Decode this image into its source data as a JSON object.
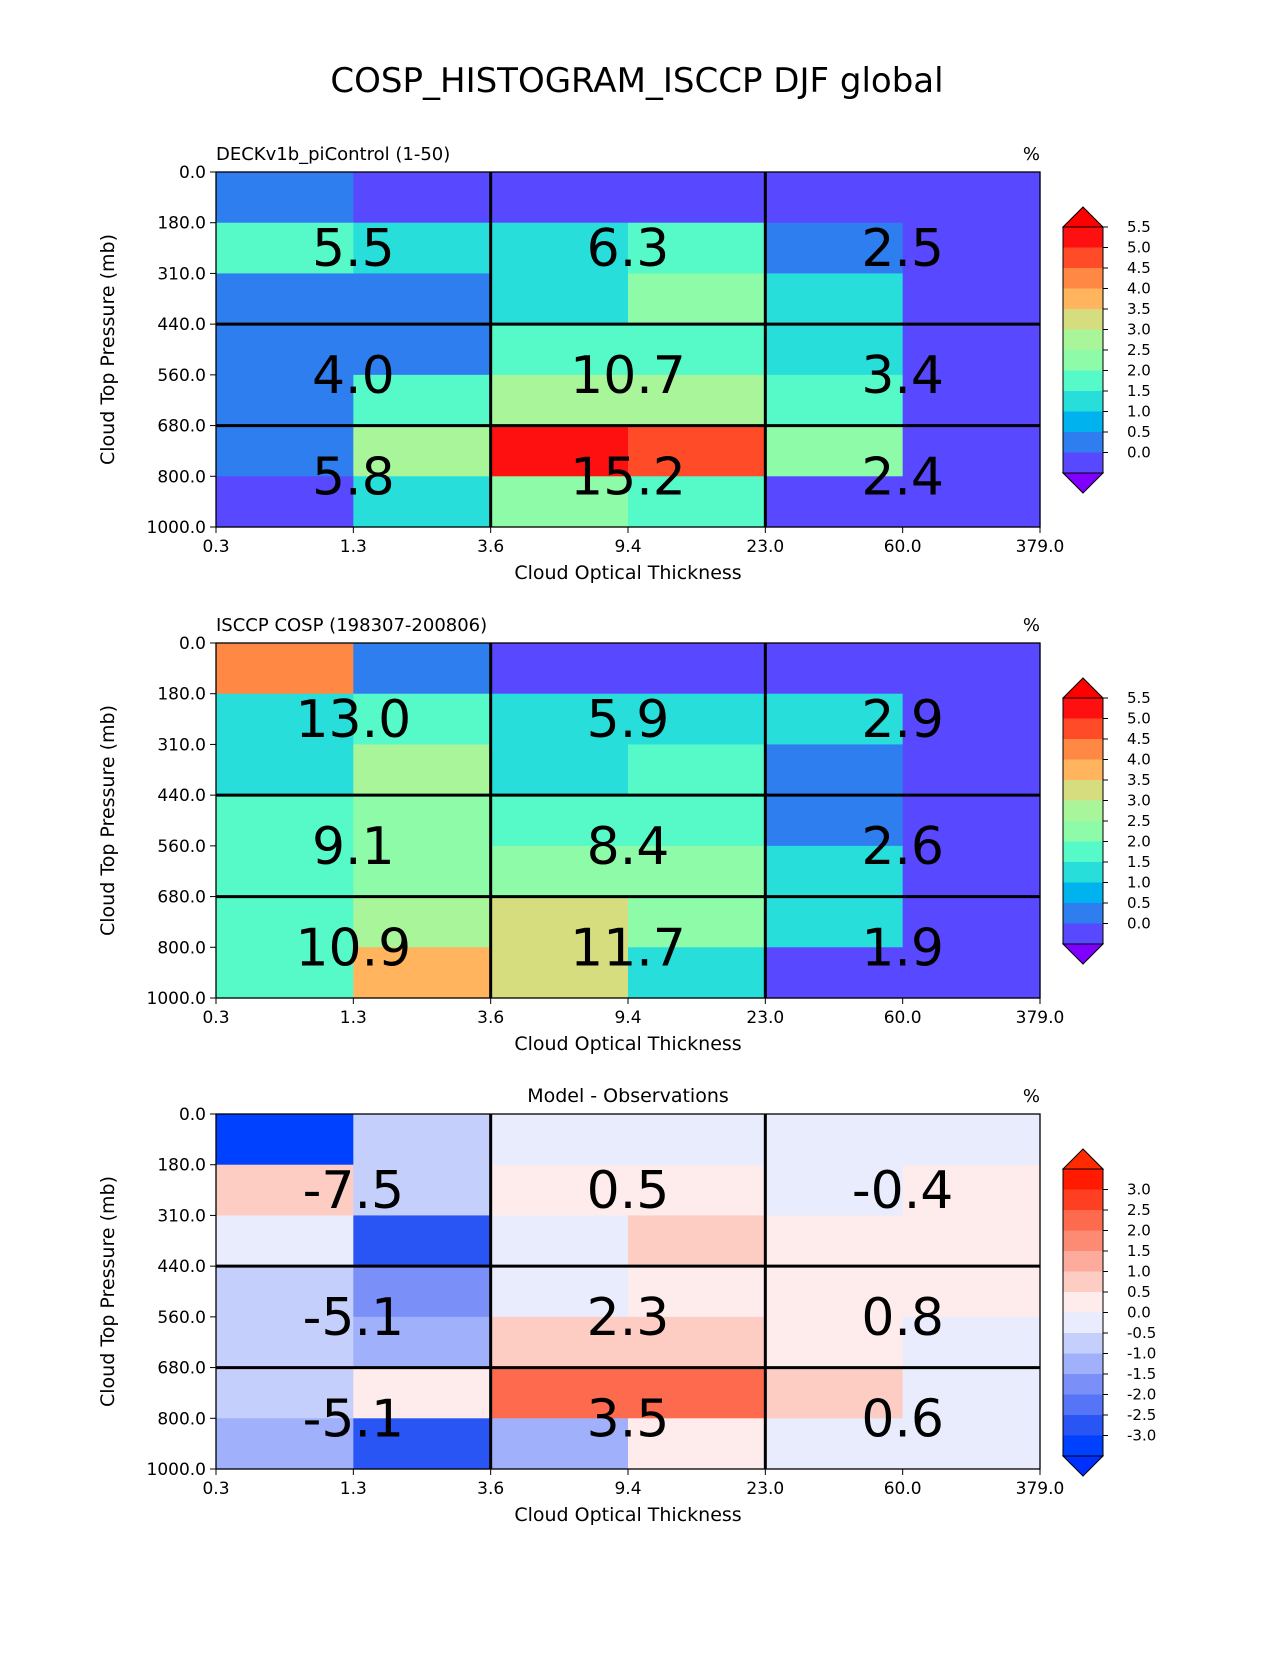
{
  "page_title": "COSP_HISTOGRAM_ISCCP DJF global",
  "chart_data": [
    {
      "type": "heatmap",
      "title": "DECKv1b_piControl (1-50)",
      "units": "%",
      "xlabel": "Cloud Optical Thickness",
      "ylabel": "Cloud Top Pressure (mb)",
      "x_bin_edges": [
        "0.3",
        "1.3",
        "3.6",
        "9.4",
        "23.0",
        "60.0",
        "379.0"
      ],
      "y_bin_edges": [
        "0.0",
        "180.0",
        "310.0",
        "440.0",
        "560.0",
        "680.0",
        "800.0",
        "1000.0"
      ],
      "colorbar": {
        "ticks": [
          "5.5",
          "5.0",
          "4.5",
          "4.0",
          "3.5",
          "3.0",
          "2.5",
          "2.0",
          "1.5",
          "1.0",
          "0.5",
          "0.0"
        ],
        "levels": [
          0,
          0.5,
          1.0,
          1.5,
          2.0,
          2.5,
          3.0,
          3.5,
          4.0,
          4.5,
          5.0,
          5.5
        ],
        "colors": [
          "#5848ff",
          "#2e7ef0",
          "#00b2ee",
          "#27dedb",
          "#55fac8",
          "#8dfba7",
          "#a9f59a",
          "#d5dd7e",
          "#ffb45d",
          "#ff8844",
          "#ff4b28",
          "#ff1010"
        ],
        "under_color": "#8000ff",
        "over_color": "#ff0000"
      },
      "cells": [
        [
          0.5,
          0.2,
          0.2,
          0.2,
          0.2,
          0.2
        ],
        [
          2.0,
          1.5,
          1.5,
          2.0,
          0.5,
          0.2
        ],
        [
          0.5,
          0.5,
          1.5,
          2.5,
          1.5,
          0.2
        ],
        [
          0.5,
          0.5,
          2.0,
          2.0,
          1.5,
          0.2
        ],
        [
          0.5,
          2.0,
          3.0,
          3.0,
          2.0,
          0.2
        ],
        [
          0.5,
          3.0,
          5.8,
          5.0,
          2.5,
          0.2
        ],
        [
          0.2,
          1.5,
          2.5,
          2.0,
          0.2,
          0.2
        ]
      ],
      "group_labels": [
        [
          "5.5",
          "6.3",
          "2.5"
        ],
        [
          "4.0",
          "10.7",
          "3.4"
        ],
        [
          "5.8",
          "15.2",
          "2.4"
        ]
      ]
    },
    {
      "type": "heatmap",
      "title": "ISCCP COSP (198307-200806)",
      "units": "%",
      "xlabel": "Cloud Optical Thickness",
      "ylabel": "Cloud Top Pressure (mb)",
      "x_bin_edges": [
        "0.3",
        "1.3",
        "3.6",
        "9.4",
        "23.0",
        "60.0",
        "379.0"
      ],
      "y_bin_edges": [
        "0.0",
        "180.0",
        "310.0",
        "440.0",
        "560.0",
        "680.0",
        "800.0",
        "1000.0"
      ],
      "colorbar": {
        "ticks": [
          "5.5",
          "5.0",
          "4.5",
          "4.0",
          "3.5",
          "3.0",
          "2.5",
          "2.0",
          "1.5",
          "1.0",
          "0.5",
          "0.0"
        ],
        "levels": [
          0,
          0.5,
          1.0,
          1.5,
          2.0,
          2.5,
          3.0,
          3.5,
          4.0,
          4.5,
          5.0,
          5.5
        ],
        "colors": [
          "#5848ff",
          "#2e7ef0",
          "#00b2ee",
          "#27dedb",
          "#55fac8",
          "#8dfba7",
          "#a9f59a",
          "#d5dd7e",
          "#ffb45d",
          "#ff8844",
          "#ff4b28",
          "#ff1010"
        ],
        "under_color": "#8000ff",
        "over_color": "#ff0000"
      },
      "cells": [
        [
          4.8,
          0.5,
          0.2,
          0.2,
          0.2,
          0.2
        ],
        [
          1.5,
          2.0,
          1.5,
          1.5,
          1.5,
          0.2
        ],
        [
          1.5,
          3.0,
          1.5,
          2.0,
          0.5,
          0.2
        ],
        [
          2.0,
          2.5,
          2.0,
          2.0,
          0.5,
          0.2
        ],
        [
          2.0,
          2.5,
          2.5,
          2.5,
          1.5,
          0.2
        ],
        [
          2.0,
          3.0,
          3.5,
          2.5,
          1.5,
          0.2
        ],
        [
          2.0,
          4.2,
          3.5,
          1.5,
          0.2,
          0.2
        ]
      ],
      "group_labels": [
        [
          "13.0",
          "5.9",
          "2.9"
        ],
        [
          "9.1",
          "8.4",
          "2.6"
        ],
        [
          "10.9",
          "11.7",
          "1.9"
        ]
      ]
    },
    {
      "type": "heatmap",
      "title": "Model - Observations",
      "units": "%",
      "xlabel": "Cloud Optical Thickness",
      "ylabel": "Cloud Top Pressure (mb)",
      "x_bin_edges": [
        "0.3",
        "1.3",
        "3.6",
        "9.4",
        "23.0",
        "60.0",
        "379.0"
      ],
      "y_bin_edges": [
        "0.0",
        "180.0",
        "310.0",
        "440.0",
        "560.0",
        "680.0",
        "800.0",
        "1000.0"
      ],
      "colorbar": {
        "ticks": [
          "3.0",
          "2.5",
          "2.0",
          "1.5",
          "1.0",
          "0.5",
          "0.0",
          "-0.5",
          "-1.0",
          "-1.5",
          "-2.0",
          "-2.5",
          "-3.0"
        ],
        "levels": [
          -3.0,
          -2.5,
          -2.0,
          -1.5,
          -1.0,
          -0.5,
          0.0,
          0.5,
          1.0,
          1.5,
          2.0,
          2.5,
          3.0
        ],
        "colors": [
          "#0040ff",
          "#2a55f5",
          "#5575f6",
          "#7a90f8",
          "#a0b0fa",
          "#c4cffc",
          "#e8ecfd",
          "#fdeceb",
          "#fdcdc4",
          "#fcab9c",
          "#fd8b73",
          "#fd6a4d",
          "#fe3f22",
          "#ff1a00"
        ],
        "under_color": "#0030ff",
        "over_color": "#ff2a00"
      },
      "cells": [
        [
          -3.2,
          -0.7,
          -0.2,
          -0.2,
          -0.2,
          -0.2
        ],
        [
          0.7,
          -0.7,
          0.2,
          0.2,
          -0.2,
          0.2
        ],
        [
          -0.2,
          -2.7,
          -0.2,
          0.7,
          0.2,
          0.2
        ],
        [
          -0.7,
          -1.7,
          -0.2,
          0.2,
          0.2,
          0.2
        ],
        [
          -0.7,
          -1.2,
          0.7,
          0.7,
          0.2,
          -0.2
        ],
        [
          -0.7,
          0.2,
          2.2,
          2.2,
          0.7,
          -0.2
        ],
        [
          -1.2,
          -2.7,
          -1.2,
          0.2,
          -0.2,
          -0.2
        ]
      ],
      "group_labels": [
        [
          "-7.5",
          "0.5",
          "-0.4"
        ],
        [
          "-5.1",
          "2.3",
          "0.8"
        ],
        [
          "-5.1",
          "3.5",
          "0.6"
        ]
      ]
    }
  ]
}
